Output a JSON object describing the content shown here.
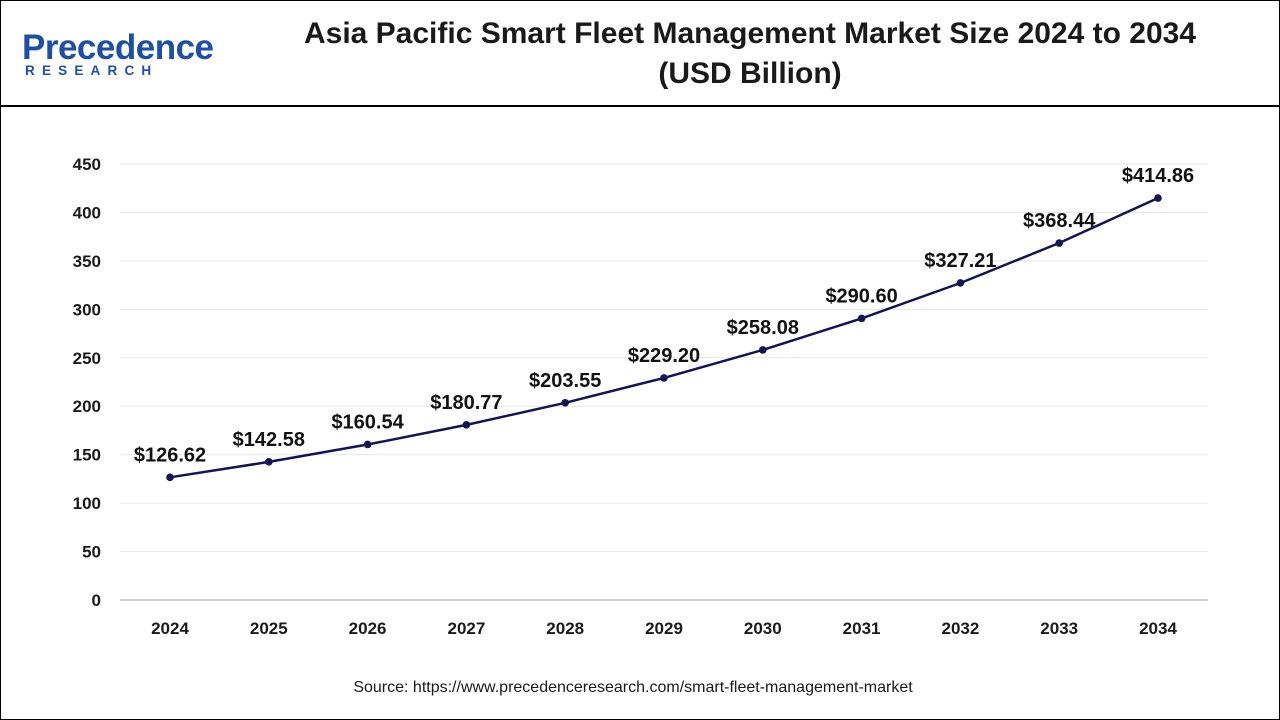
{
  "brand": {
    "logo_main": "Precedence",
    "logo_sub": "RESEARCH",
    "color": "#1f4fa1"
  },
  "header": {
    "title_line1": "Asia Pacific Smart Fleet Management Market Size 2024 to 2034",
    "title_line2": "(USD Billion)"
  },
  "chart_data": {
    "type": "line",
    "title": "Asia Pacific Smart Fleet Management Market Size 2024 to 2034 (USD Billion)",
    "xlabel": "",
    "ylabel": "",
    "x": [
      "2024",
      "2025",
      "2026",
      "2027",
      "2028",
      "2029",
      "2030",
      "2031",
      "2032",
      "2033",
      "2034"
    ],
    "values": [
      126.62,
      142.58,
      160.54,
      180.77,
      203.55,
      229.2,
      258.08,
      290.6,
      327.21,
      368.44,
      414.86
    ],
    "value_labels": [
      "$126.62",
      "$142.58",
      "$160.54",
      "$180.77",
      "$203.55",
      "$229.20",
      "$258.08",
      "$290.60",
      "$327.21",
      "$368.44",
      "$414.86"
    ],
    "ylim": [
      0,
      450
    ],
    "yticks": [
      0,
      50,
      100,
      150,
      200,
      250,
      300,
      350,
      400,
      450
    ],
    "grid": true,
    "legend": "none",
    "line_color": "#141450",
    "grid_color": "#e6e6e6"
  },
  "footer": {
    "source": "Source: https://www.precedenceresearch.com/smart-fleet-management-market"
  }
}
